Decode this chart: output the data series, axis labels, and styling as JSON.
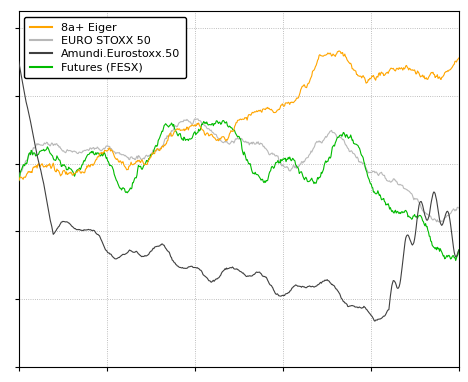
{
  "n": 600,
  "seed": 137,
  "colors": {
    "eiger": "#FFA500",
    "stoxx": "#B8B8B8",
    "amundi": "#404040",
    "futures": "#00BB00"
  },
  "labels": {
    "eiger": "8a+ Eiger",
    "stoxx": "EURO STOXX 50",
    "amundi": "Amundi.Eurostoxx.50",
    "futures": "Futures (FESX)"
  },
  "linewidths": {
    "eiger": 0.8,
    "stoxx": 0.8,
    "amundi": 0.8,
    "futures": 0.8
  },
  "background_color": "#FFFFFF",
  "grid_color": "#AAAAAA",
  "legend_loc": "upper left",
  "legend_fontsize": 8,
  "tick_labelsize": 7
}
